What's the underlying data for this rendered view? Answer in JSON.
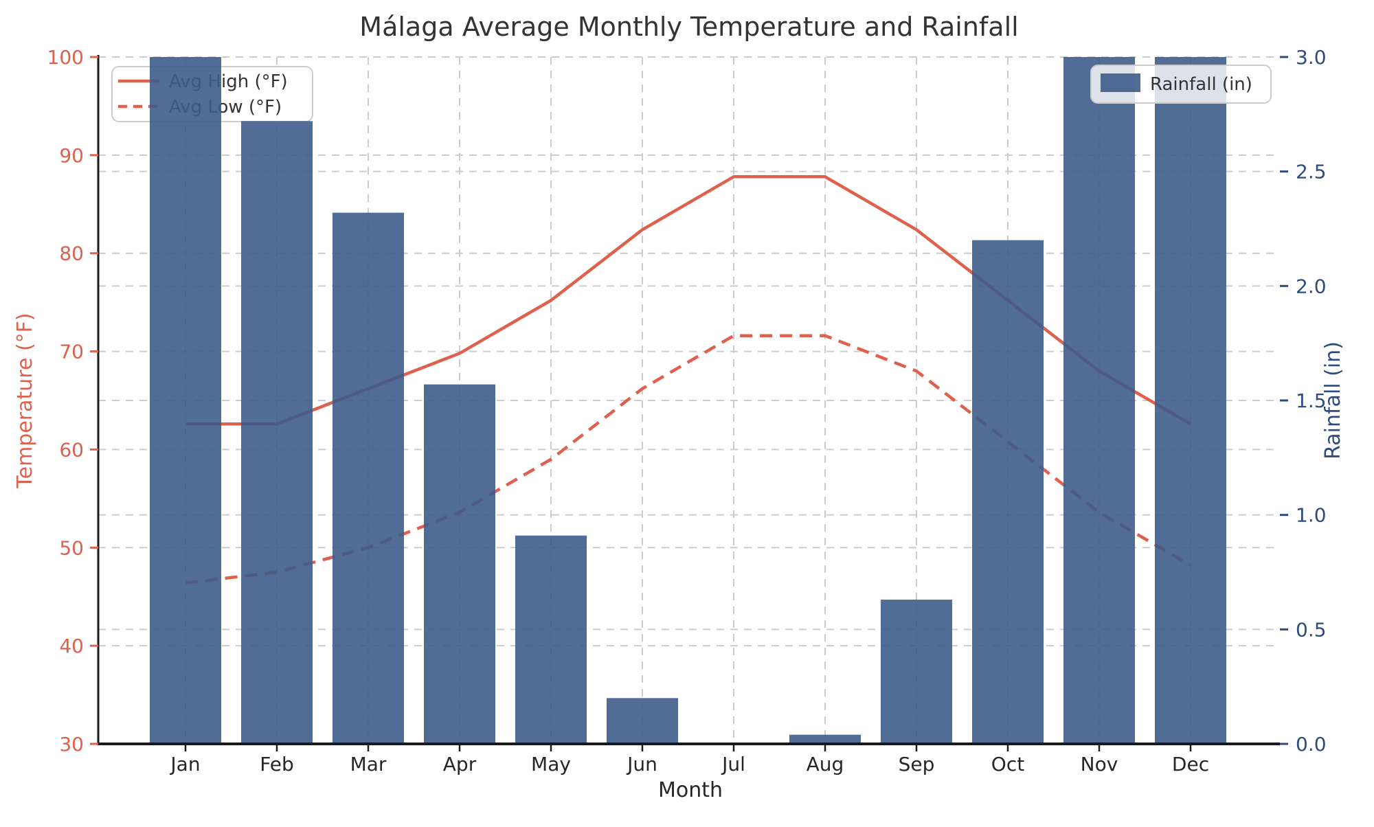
{
  "chart_data": {
    "type": "combo",
    "title": "Málaga Average Monthly Temperature and Rainfall",
    "xlabel": "Month",
    "categories": [
      "Jan",
      "Feb",
      "Mar",
      "Apr",
      "May",
      "Jun",
      "Jul",
      "Aug",
      "Sep",
      "Oct",
      "Nov",
      "Dec"
    ],
    "series": [
      {
        "name": "Avg High (°F)",
        "type": "line",
        "line_style": "solid",
        "axis": "left",
        "color": "#E0604E",
        "values": [
          62.6,
          62.6,
          66.2,
          69.8,
          75.2,
          82.4,
          87.8,
          87.8,
          82.4,
          75.2,
          68.0,
          62.6
        ]
      },
      {
        "name": "Avg Low (°F)",
        "type": "line",
        "line_style": "dashed",
        "axis": "left",
        "color": "#E0604E",
        "values": [
          46.4,
          47.5,
          50.0,
          53.6,
          59.0,
          66.2,
          71.6,
          71.6,
          68.0,
          60.8,
          53.6,
          48.2
        ]
      },
      {
        "name": "Rainfall (in)",
        "type": "bar",
        "axis": "right",
        "color": "#3E5C8A",
        "opacity": 0.9,
        "values": [
          3.0,
          2.72,
          2.32,
          1.57,
          0.91,
          0.2,
          0.0,
          0.04,
          0.63,
          2.2,
          3.0,
          3.0
        ],
        "note": "Jan, Nov and Dec bars reach the right-axis maximum (3.0 in); Nov and Dec are clipped at the top of the plot."
      }
    ],
    "left_axis": {
      "label": "Temperature (°F)",
      "min": 30,
      "max": 100,
      "tick_step": 10,
      "ticks": [
        "30",
        "40",
        "50",
        "60",
        "70",
        "80",
        "90",
        "100"
      ],
      "color": "#E0604E"
    },
    "right_axis": {
      "label": "Rainfall (in)",
      "min": 0.0,
      "max": 3.0,
      "tick_step": 0.5,
      "ticks": [
        "0.0",
        "0.5",
        "1.0",
        "1.5",
        "2.0",
        "2.5",
        "3.0"
      ],
      "color": "#2E4A7E"
    },
    "grid": true,
    "legends": [
      {
        "position": "upper-left",
        "entries": [
          "Avg High (°F)",
          "Avg Low (°F)"
        ]
      },
      {
        "position": "upper-right",
        "entries": [
          "Rainfall (in)"
        ]
      }
    ]
  },
  "colors": {
    "line_red": "#E0604E",
    "bar_blue": "#3E5C8A",
    "right_axis_navy": "#2E4A7E",
    "title_gray": "#333333",
    "tick_dark": "#262626",
    "gridline": "#CCCCCC",
    "spine": "#1A1A1A",
    "legend_border": "#CCCCCC",
    "background": "#FFFFFF"
  }
}
